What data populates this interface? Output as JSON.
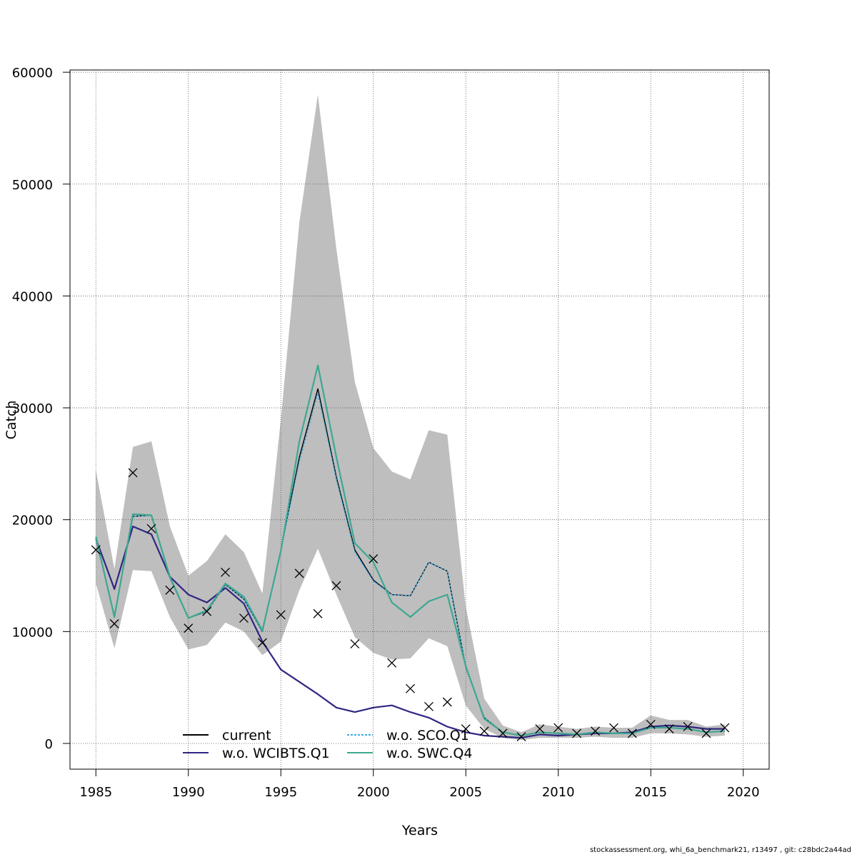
{
  "chart_data": {
    "type": "line",
    "title": "",
    "xlabel": "Years",
    "ylabel": "Catch",
    "xlim": [
      1983.6,
      2021.4
    ],
    "ylim": [
      -2300,
      60200
    ],
    "grid": true,
    "x_ticks": [
      1985,
      1990,
      1995,
      2000,
      2005,
      2010,
      2015,
      2020
    ],
    "y_ticks": [
      0,
      10000,
      20000,
      30000,
      40000,
      50000,
      60000
    ],
    "x": [
      1985,
      1986,
      1987,
      1988,
      1989,
      1990,
      1991,
      1992,
      1993,
      1994,
      1995,
      1996,
      1997,
      1998,
      1999,
      2000,
      2001,
      2002,
      2003,
      2004,
      2005,
      2006,
      2007,
      2008,
      2009,
      2010,
      2011,
      2012,
      2013,
      2014,
      2015,
      2016,
      2017,
      2018,
      2019
    ],
    "band": {
      "lower": [
        14300,
        8500,
        15500,
        15400,
        11300,
        8400,
        8800,
        10800,
        10000,
        7900,
        9100,
        13700,
        17400,
        13300,
        9500,
        8100,
        7500,
        7600,
        9400,
        8700,
        3400,
        1300,
        500,
        300,
        500,
        500,
        500,
        600,
        500,
        500,
        900,
        900,
        800,
        600,
        700
      ],
      "upper": [
        24400,
        15600,
        26500,
        27000,
        19400,
        15000,
        16300,
        18700,
        17100,
        13400,
        29000,
        46600,
        58000,
        44200,
        32300,
        26400,
        24300,
        23600,
        28000,
        27600,
        12200,
        4000,
        1600,
        1000,
        1700,
        1500,
        1300,
        1500,
        1400,
        1400,
        2500,
        2100,
        2100,
        1500,
        1700
      ],
      "color": "#bebebe"
    },
    "series": [
      {
        "name": "current",
        "color": "#000000",
        "dash": "",
        "values": [
          18300,
          11400,
          20300,
          20400,
          14800,
          11200,
          11800,
          14200,
          12900,
          10000,
          17300,
          25600,
          31700,
          23800,
          17300,
          14600,
          13300,
          13200,
          16200,
          15400,
          6800,
          2300,
          1000,
          700,
          1000,
          900,
          800,
          1000,
          900,
          900,
          1400,
          1400,
          1300,
          1000,
          1100
        ]
      },
      {
        "name": "w.o. WCIBTS.Q1",
        "color": "#2f2682",
        "dash": "",
        "values": [
          18300,
          13800,
          19400,
          18700,
          14900,
          13300,
          12600,
          13900,
          12500,
          9100,
          6600,
          5500,
          4400,
          3200,
          2800,
          3200,
          3400,
          2800,
          2300,
          1500,
          1000,
          700,
          600,
          500,
          800,
          700,
          800,
          900,
          900,
          1000,
          1500,
          1600,
          1500,
          1300,
          1300
        ]
      },
      {
        "name": "w.o. SCO.Q1",
        "color": "#3ba9e0",
        "dash": "3,2",
        "values": [
          18300,
          11400,
          20300,
          20400,
          14800,
          11200,
          11800,
          14200,
          12900,
          10000,
          17300,
          25200,
          31300,
          23600,
          17100,
          14500,
          13300,
          13200,
          16200,
          15400,
          6800,
          2300,
          1000,
          700,
          1000,
          900,
          800,
          1000,
          900,
          900,
          1400,
          1400,
          1300,
          1000,
          1100
        ]
      },
      {
        "name": "w.o. SWC.Q4",
        "color": "#3ea891",
        "dash": "",
        "values": [
          18500,
          11300,
          20500,
          20400,
          14900,
          11200,
          11900,
          14300,
          13100,
          10100,
          17200,
          27000,
          33800,
          25600,
          17900,
          16200,
          12600,
          11300,
          12700,
          13300,
          6900,
          2200,
          1000,
          700,
          1000,
          900,
          800,
          1000,
          900,
          900,
          1400,
          1400,
          1300,
          1000,
          1100
        ]
      }
    ],
    "observed": {
      "marker": "x",
      "values": [
        17300,
        10700,
        24200,
        19200,
        13700,
        10300,
        11800,
        15300,
        11200,
        9000,
        11500,
        15200,
        11600,
        14100,
        8900,
        16500,
        7200,
        4900,
        3300,
        3700,
        1300,
        1100,
        900,
        600,
        1300,
        1400,
        900,
        1100,
        1400,
        900,
        1700,
        1300,
        1500,
        900,
        1400
      ]
    },
    "legend": {
      "placement": "bottom-center",
      "columns": 2,
      "order": [
        "current",
        "w.o. WCIBTS.Q1",
        "w.o. SCO.Q1",
        "w.o. SWC.Q4"
      ]
    }
  },
  "footer": "stockassessment.org, whi_6a_benchmark21, r13497 , git: c28bdc2a44ad"
}
